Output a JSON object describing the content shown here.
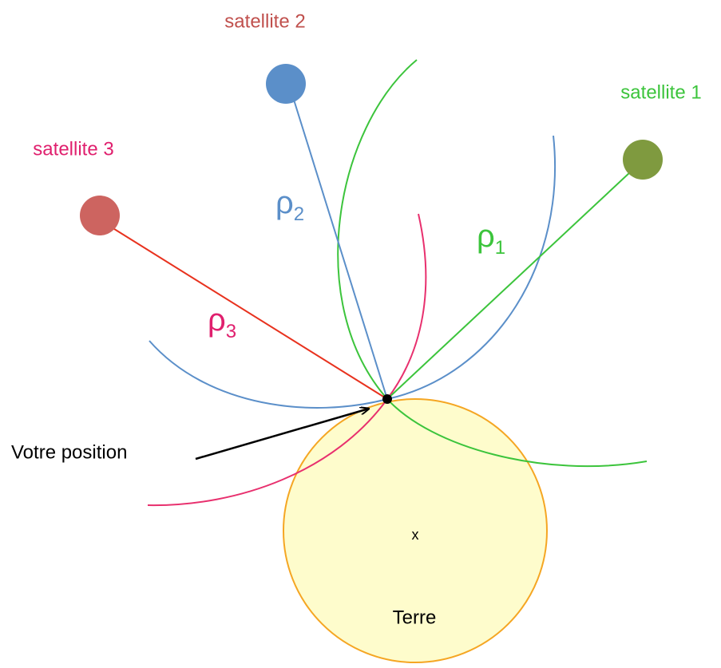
{
  "satellites": [
    {
      "name": "satellite 1",
      "rho": {
        "symbol": "ρ",
        "subscript": "1"
      }
    },
    {
      "name": "satellite 2",
      "rho": {
        "symbol": "ρ",
        "subscript": "2"
      }
    },
    {
      "name": "satellite 3",
      "rho": {
        "symbol": "ρ",
        "subscript": "3"
      }
    }
  ],
  "position_label": "Votre position",
  "earth": {
    "center_mark": "x",
    "label": "Terre"
  }
}
